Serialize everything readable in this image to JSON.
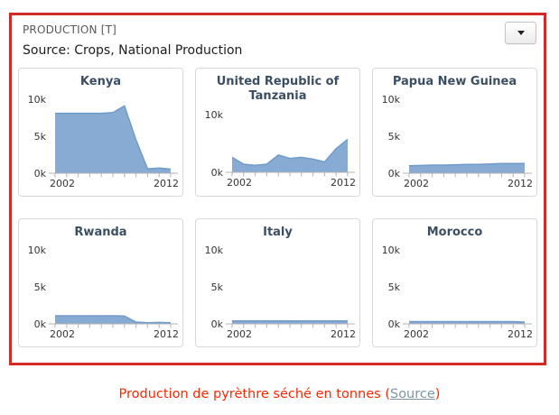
{
  "panel": {
    "title": "PRODUCTION [T]",
    "source_line": "Source: Crops, National Production",
    "dropdown_icon": "caret-down-icon"
  },
  "caption": {
    "text_before": "Production de pyrèthre séché en tonnes (",
    "link_text": "Source",
    "text_after": ")"
  },
  "colors": {
    "panel_border": "#d22a24",
    "card_border": "#d8d8d8",
    "area_fill": "#88abd4",
    "area_stroke": "#6f9bc9",
    "axis": "#b3b3b6",
    "axis_text": "#333333",
    "chart_title_text": "#3c4e63",
    "caption_text": "#ff2600",
    "caption_link": "#7e95a8"
  },
  "chart_data": {
    "type": "area",
    "layout": "small-multiples-grid-3x2",
    "title": "PRODUCTION [T]",
    "subtitle": "Source: Crops, National Production",
    "x": [
      2002,
      2003,
      2004,
      2005,
      2006,
      2007,
      2008,
      2009,
      2010,
      2011,
      2012
    ],
    "x_tick_labels_shown": [
      "2002",
      "2012"
    ],
    "y_unit": "thousand tonnes",
    "ylim": [
      0,
      10
    ],
    "grid": false,
    "legend": "none",
    "series": [
      {
        "name": "Kenya",
        "y_tick_labels": [
          "0k",
          "5k",
          "10k"
        ],
        "values": [
          8.1,
          8.1,
          8.1,
          8.1,
          8.1,
          8.2,
          9.1,
          4.5,
          0.6,
          0.7,
          0.55
        ]
      },
      {
        "name": "United Republic of Tanzania",
        "y_tick_labels": [
          "0k",
          "10k"
        ],
        "values": [
          2.6,
          1.4,
          1.2,
          1.4,
          3.0,
          2.4,
          2.6,
          2.3,
          1.8,
          4.1,
          5.7
        ]
      },
      {
        "name": "Papua New Guinea",
        "y_tick_labels": [
          "0k",
          "5k",
          "10k"
        ],
        "values": [
          1.0,
          1.05,
          1.1,
          1.1,
          1.15,
          1.2,
          1.2,
          1.25,
          1.3,
          1.3,
          1.3
        ]
      },
      {
        "name": "Rwanda",
        "y_tick_labels": [
          "0k",
          "5k",
          "10k"
        ],
        "values": [
          1.1,
          1.1,
          1.1,
          1.1,
          1.1,
          1.1,
          1.05,
          0.25,
          0.15,
          0.2,
          0.15
        ]
      },
      {
        "name": "Italy",
        "y_tick_labels": [
          "0k",
          "5k",
          "10k"
        ],
        "values": [
          0.4,
          0.4,
          0.4,
          0.4,
          0.4,
          0.4,
          0.4,
          0.4,
          0.4,
          0.4,
          0.4
        ]
      },
      {
        "name": "Morocco",
        "y_tick_labels": [
          "0k",
          "5k",
          "10k"
        ],
        "values": [
          0.3,
          0.3,
          0.3,
          0.3,
          0.3,
          0.3,
          0.3,
          0.3,
          0.3,
          0.3,
          0.25
        ]
      }
    ]
  }
}
